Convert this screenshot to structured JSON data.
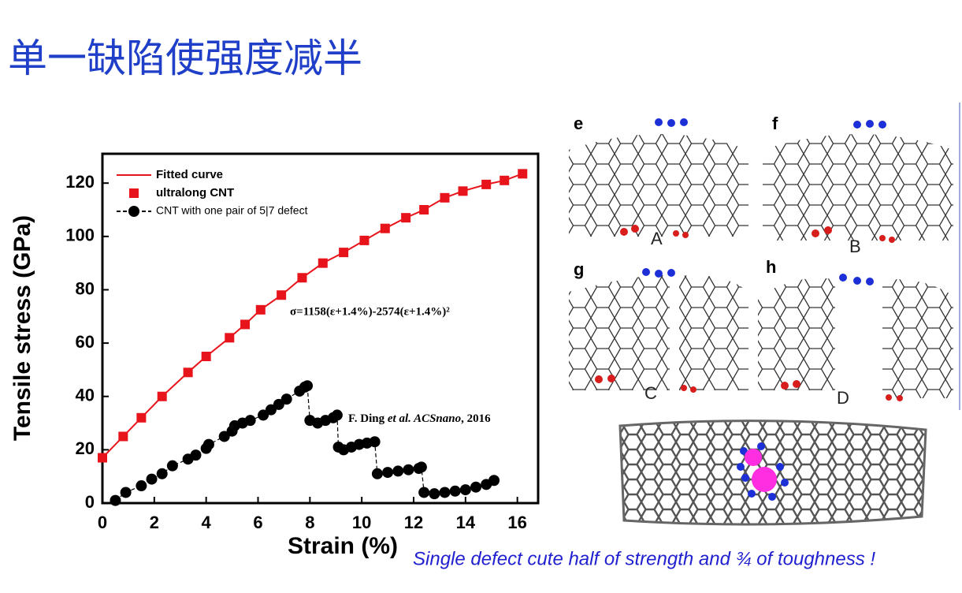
{
  "title": "单一缺陷使强度减半",
  "caption": "Single defect cute half of strength and ¾ of toughness !",
  "panels": {
    "labels": [
      "e",
      "f",
      "g",
      "h"
    ],
    "states": [
      "A",
      "B",
      "C",
      "D"
    ]
  },
  "chart_data": {
    "type": "scatter",
    "x_label": "Strain (%)",
    "y_label": "Tensile stress (GPa)",
    "xlim": [
      0,
      16.8
    ],
    "ylim": [
      0,
      131
    ],
    "xticks": [
      0,
      2,
      4,
      6,
      8,
      10,
      12,
      14,
      16
    ],
    "yticks": [
      0,
      20,
      40,
      60,
      80,
      100,
      120
    ],
    "legend": "upper left",
    "annotations": {
      "equation": "σ=1158(ε+1.4%)-2574(ε+1.4%)²",
      "citation": [
        "F. Ding ",
        "et al.",
        " ACSnano",
        ", 2016"
      ]
    },
    "series": [
      {
        "name": "Fitted curve",
        "color": "#e8141b",
        "marker": "none",
        "x": [
          0,
          0.8,
          1.5,
          2.3,
          3.3,
          4,
          4.9,
          5.5,
          6.1,
          6.9,
          7.7,
          8.5,
          9.3,
          10.1,
          10.9,
          11.7,
          12.4,
          13.2,
          13.9,
          14.8,
          15.5,
          16.2
        ],
        "values": [
          17,
          25,
          32,
          40,
          49,
          55,
          62,
          67,
          72.5,
          78,
          84.5,
          90,
          94,
          98.5,
          103,
          107,
          110,
          114.5,
          117,
          119.5,
          121,
          123.5
        ]
      },
      {
        "name": "ultralong CNT",
        "color": "#e8141b",
        "marker": "square",
        "x": [
          0,
          0.8,
          1.5,
          2.3,
          3.3,
          4,
          4.9,
          5.5,
          6.1,
          6.9,
          7.7,
          8.5,
          9.3,
          10.1,
          10.9,
          11.7,
          12.4,
          13.2,
          13.9,
          14.8,
          15.5,
          16.2
        ],
        "values": [
          17,
          25,
          32,
          40,
          49,
          55,
          62,
          67,
          72.5,
          78,
          84.5,
          90,
          94,
          98.5,
          103,
          107,
          110,
          114.5,
          117,
          119.5,
          121,
          123.5
        ]
      },
      {
        "name": "CNT with one pair of 5|7 defect",
        "color": "#000000",
        "marker": "circle",
        "x": [
          0.5,
          0.9,
          1.5,
          1.9,
          2.3,
          2.7,
          3.3,
          3.6,
          4,
          4.1,
          4.7,
          5,
          5.1,
          5.4,
          5.7,
          6.2,
          6.5,
          6.8,
          7.1,
          7.6,
          7.8,
          7.9,
          8,
          8.3,
          8.6,
          8.9,
          9.05,
          9.1,
          9.3,
          9.6,
          9.9,
          10.2,
          10.5,
          10.6,
          11,
          11.4,
          11.8,
          12.2,
          12.3,
          12.4,
          12.8,
          13.2,
          13.6,
          14,
          14.4,
          14.8,
          15.1
        ],
        "values": [
          1,
          4,
          6.5,
          9,
          11,
          14,
          16.5,
          18,
          20.5,
          22,
          25,
          27,
          29,
          30,
          31,
          33,
          35,
          37,
          39,
          42,
          43.5,
          44,
          31,
          30,
          31,
          32,
          33,
          21,
          20,
          21,
          22,
          22.5,
          23,
          11,
          11.5,
          12,
          12.5,
          13,
          13.5,
          4,
          3.5,
          4,
          4.5,
          5,
          6,
          7,
          8.5
        ]
      }
    ]
  }
}
